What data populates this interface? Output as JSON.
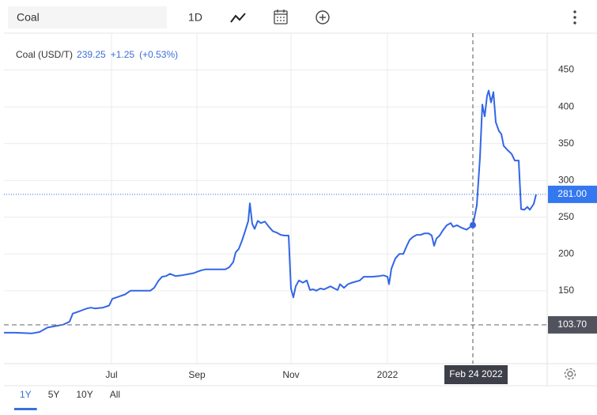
{
  "toolbar": {
    "symbol": "Coal",
    "interval": "1D"
  },
  "chart_data": {
    "type": "line",
    "legend": {
      "name": "Coal (USD/T)",
      "price": "239.25",
      "change": "+1.25",
      "change_pct": "(+0.53%)"
    },
    "x": [
      0,
      6,
      14,
      18,
      22,
      26,
      30,
      33.2,
      34.8,
      38,
      40,
      42,
      44,
      46,
      50,
      53.2,
      54.8,
      58,
      61.2,
      64,
      68,
      74,
      76,
      78,
      80,
      82,
      84,
      86.8,
      90,
      96,
      98,
      100,
      102,
      106,
      112,
      114,
      116,
      117.2,
      118.8,
      120.4,
      122,
      123.6,
      124.4,
      125.6,
      126.8,
      128.4,
      130,
      132,
      134,
      136,
      138,
      140,
      142,
      144,
      145.2,
      146.4,
      147.6,
      149.2,
      151.2,
      153.2,
      154.8,
      156.4,
      158,
      160,
      162,
      165.2,
      167.2,
      168.8,
      170,
      172,
      174,
      176,
      180,
      182,
      186,
      190,
      192,
      194,
      194.8,
      196,
      198,
      200,
      202,
      203.6,
      205.2,
      206.8,
      208.8,
      210.8,
      212.8,
      214.8,
      216.4,
      217.6,
      218.8,
      220.4,
      222,
      224,
      226,
      227.2,
      229.2,
      231.2,
      234,
      237.2,
      239.2,
      240.8,
      242,
      243.2,
      244.4,
      245.2,
      246.4,
      247.6,
      248.8,
      250.4,
      251.6,
      252.8,
      254.8,
      256.8,
      258.4,
      260.4,
      261.6,
      263.2,
      264.8,
      266,
      268,
      269.2
    ],
    "series": [
      {
        "name": "Coal (USD/T)",
        "color": "#3366e6",
        "values": [
          93,
          93,
          92,
          94,
          100,
          102,
          104,
          108,
          119,
          122,
          124,
          126,
          127,
          126,
          127,
          130,
          139,
          142,
          145,
          150,
          150,
          150,
          154,
          163,
          169,
          170,
          173,
          170,
          171,
          174,
          176,
          178,
          179,
          179,
          179,
          182,
          189,
          202,
          207,
          218,
          231,
          245,
          269,
          241,
          234,
          245,
          242,
          244,
          237,
          231,
          229,
          226,
          225,
          225,
          153,
          141,
          156,
          164,
          161,
          164,
          151,
          152,
          150,
          153,
          152,
          156,
          153,
          151,
          159,
          154,
          159,
          161,
          164,
          169,
          169,
          170,
          171,
          169,
          159,
          180,
          194,
          200,
          200,
          210,
          219,
          223,
          226,
          226,
          228,
          228,
          225,
          211,
          221,
          225,
          232,
          239,
          242,
          237,
          239,
          236,
          233,
          239.25,
          266,
          331,
          403,
          387,
          415,
          422,
          406,
          420,
          379,
          367,
          363,
          347,
          341,
          336,
          327,
          327,
          261,
          260,
          264,
          260,
          268,
          281
        ]
      }
    ],
    "xlim": [
      0,
      274.8
    ],
    "xticks": [
      {
        "value": 54.4,
        "label": "Jul"
      },
      {
        "value": 97.6,
        "label": "Sep"
      },
      {
        "value": 145.2,
        "label": "Nov"
      },
      {
        "value": 194,
        "label": "2022"
      }
    ],
    "ylim": [
      51,
      500
    ],
    "yticks": [
      150,
      200,
      250,
      300,
      350,
      400,
      450
    ],
    "grid": true,
    "price_label": {
      "value": 281,
      "label": "281.00"
    },
    "reference_line": {
      "value": 103.7,
      "label": "103.70"
    },
    "crosshair": {
      "x": 237.2,
      "label": "Feb 24 2022"
    }
  },
  "ranges": {
    "items": [
      "1Y",
      "5Y",
      "10Y",
      "All"
    ],
    "selected": 0
  }
}
